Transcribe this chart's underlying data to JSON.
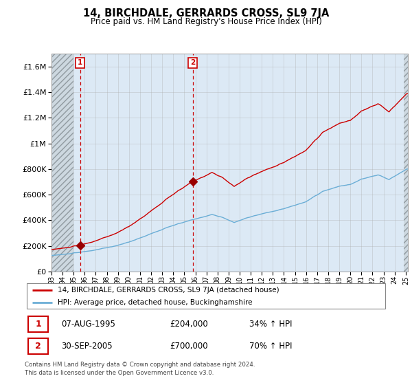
{
  "title": "14, BIRCHDALE, GERRARDS CROSS, SL9 7JA",
  "subtitle": "Price paid vs. HM Land Registry's House Price Index (HPI)",
  "legend_line1": "14, BIRCHDALE, GERRARDS CROSS, SL9 7JA (detached house)",
  "legend_line2": "HPI: Average price, detached house, Buckinghamshire",
  "transaction1_date": "07-AUG-1995",
  "transaction1_price": 204000,
  "transaction1_hpi": "34% ↑ HPI",
  "transaction2_date": "30-SEP-2005",
  "transaction2_price": 700000,
  "transaction2_hpi": "70% ↑ HPI",
  "footer": "Contains HM Land Registry data © Crown copyright and database right 2024.\nThis data is licensed under the Open Government Licence v3.0.",
  "ylim": [
    0,
    1700000
  ],
  "yticks": [
    0,
    200000,
    400000,
    600000,
    800000,
    1000000,
    1200000,
    1400000,
    1600000
  ],
  "ytick_labels": [
    "£0",
    "£200K",
    "£400K",
    "£600K",
    "£800K",
    "£1M",
    "£1.2M",
    "£1.4M",
    "£1.6M"
  ],
  "hpi_color": "#6baed6",
  "property_color": "#cc0000",
  "bg_color": "#dce9f5",
  "grid_color": "#aaaaaa",
  "vline_color": "#cc0000",
  "marker_color": "#990000",
  "transaction1_x": 1995.58,
  "transaction2_x": 2005.75,
  "xmin": 1993.0,
  "xmax": 2025.2,
  "hatch_left_end": 1995.0,
  "hatch_right_start": 2024.85
}
